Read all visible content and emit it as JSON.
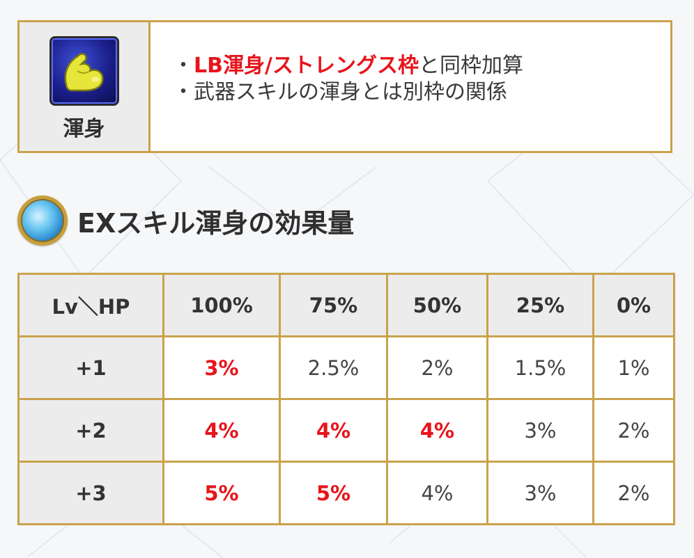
{
  "skill": {
    "name": "渾身",
    "icon": "flexed-arm-icon",
    "desc_line1_prefix": "・",
    "desc_line1_highlight": "LB渾身/ストレングス枠",
    "desc_line1_suffix": "と同枠加算",
    "desc_line2": "・武器スキルの渾身とは別枠の関係"
  },
  "section": {
    "title": "EXスキル渾身の効果量",
    "icon": "blue-orb-icon"
  },
  "table": {
    "header_corner": "Lv＼HP",
    "columns": [
      "100%",
      "75%",
      "50%",
      "25%",
      "0%"
    ],
    "rows": [
      {
        "label": "+1",
        "values": [
          "3%",
          "2.5%",
          "2%",
          "1.5%",
          "1%"
        ],
        "highlight": [
          true,
          false,
          false,
          false,
          false
        ]
      },
      {
        "label": "+2",
        "values": [
          "4%",
          "4%",
          "4%",
          "3%",
          "2%"
        ],
        "highlight": [
          true,
          true,
          true,
          false,
          false
        ]
      },
      {
        "label": "+3",
        "values": [
          "5%",
          "5%",
          "4%",
          "3%",
          "2%"
        ],
        "highlight": [
          true,
          true,
          false,
          false,
          false
        ]
      }
    ]
  },
  "colors": {
    "border": "#c9a24a",
    "highlight": "#e8141b",
    "header_bg": "#ececec"
  }
}
